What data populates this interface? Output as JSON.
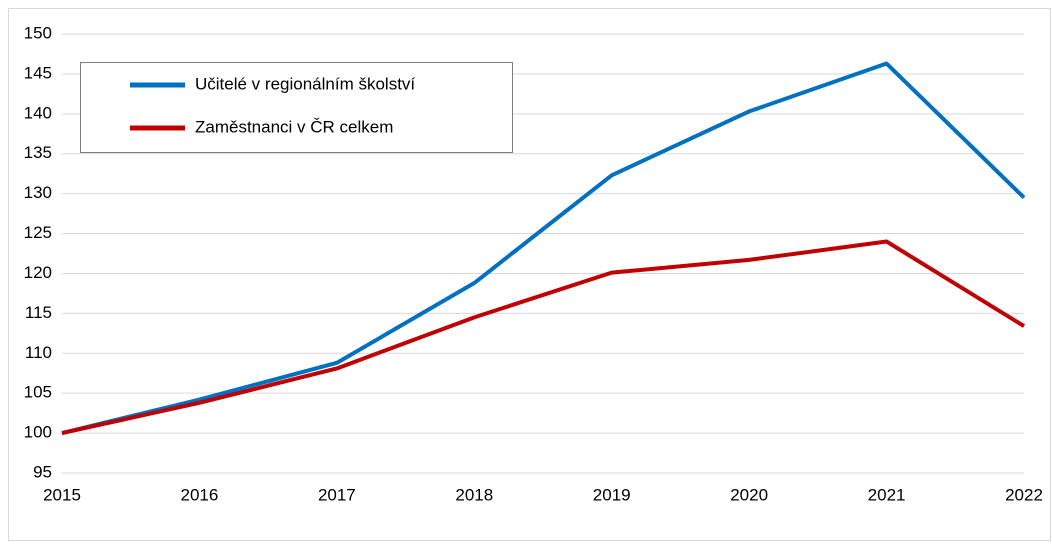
{
  "chart_data": {
    "type": "line",
    "x": [
      2015,
      2016,
      2017,
      2018,
      2019,
      2020,
      2021,
      2022
    ],
    "xlim": [
      2015,
      2022
    ],
    "xticks": [
      2015,
      2016,
      2017,
      2018,
      2019,
      2020,
      2021,
      2022
    ],
    "ylim": [
      95,
      150
    ],
    "yticks": [
      95,
      100,
      105,
      110,
      115,
      120,
      125,
      130,
      135,
      140,
      145,
      150
    ],
    "grid": true,
    "legend": "upper left",
    "series": [
      {
        "name": "Učitelé v regionálním školství",
        "color": "#0070c0",
        "values": [
          100,
          104.2,
          108.8,
          118.8,
          132.3,
          140.3,
          146.3,
          129.5
        ]
      },
      {
        "name": "Zaměstnanci v ČR celkem",
        "color": "#c00000",
        "values": [
          100,
          103.8,
          108.1,
          114.5,
          120.1,
          121.7,
          124.0,
          113.4
        ]
      }
    ]
  }
}
